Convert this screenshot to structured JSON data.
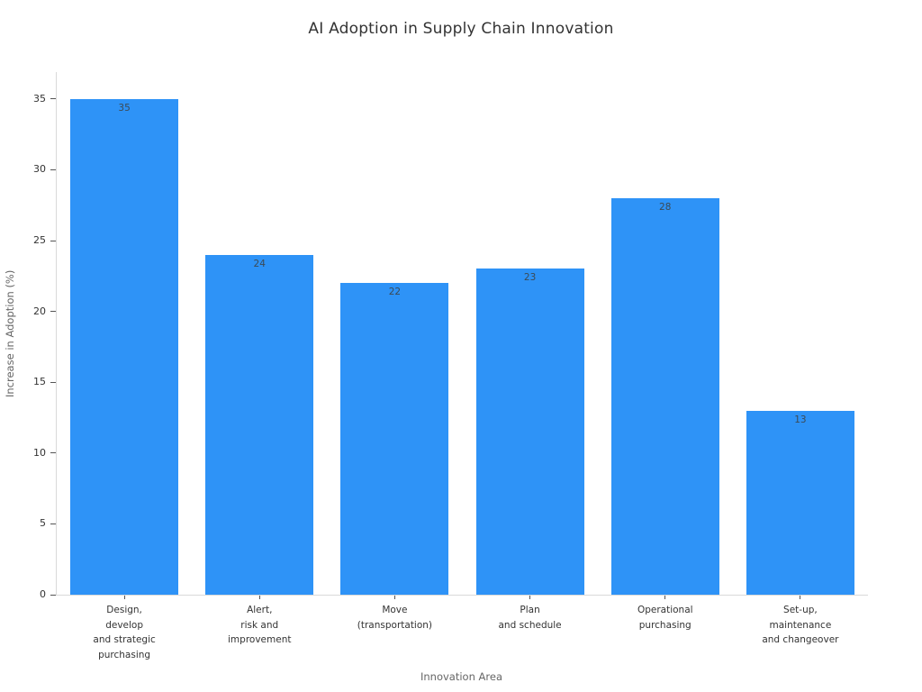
{
  "chart_data": {
    "type": "bar",
    "title": "AI Adoption in Supply Chain Innovation",
    "xlabel": "Innovation Area",
    "ylabel": "Increase in Adoption (%)",
    "categories": [
      "Design,\ndevelop\nand strategic\npurchasing",
      "Alert,\nrisk and\nimprovement",
      "Move\n(transportation)",
      "Plan\nand schedule",
      "Operational\npurchasing",
      "Set-up,\nmaintenance\nand changeover"
    ],
    "values": [
      35,
      24,
      22,
      23,
      28,
      13
    ],
    "bar_labels": [
      "35",
      "24",
      "22",
      "23",
      "28",
      "13"
    ],
    "yticks": [
      0,
      5,
      10,
      15,
      20,
      25,
      30,
      35
    ],
    "ylim": [
      0,
      36.9
    ],
    "grid": false,
    "legend": null,
    "bar_label_position": "inside-top",
    "colors": {
      "bar": "#2e93f7",
      "axis_line": "#d9d9d9",
      "tick_mark": "#555555",
      "tick_label": "#333333",
      "title": "#333333",
      "axis_title": "#666666",
      "bar_label": "#3c4a55",
      "background": "#ffffff"
    }
  }
}
